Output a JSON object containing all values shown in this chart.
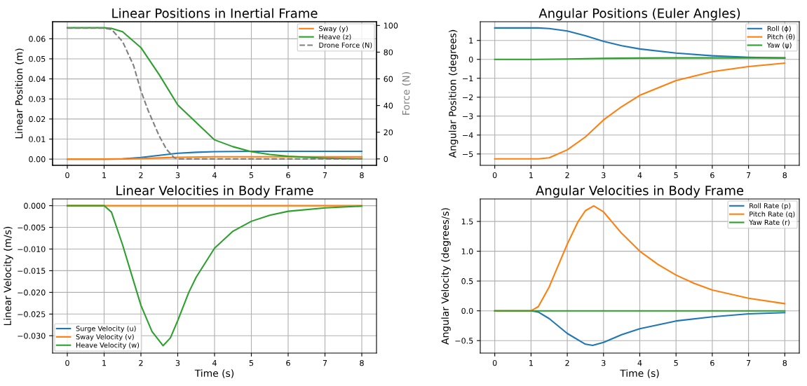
{
  "chart_data": [
    {
      "type": "line",
      "title": "Linear Positions in Inertial Frame",
      "ylabel": "Linear Position (m)",
      "y2label": "Force (N)",
      "grid": true,
      "legend": "top right",
      "xlim": [
        -0.4,
        8.4
      ],
      "xticks": [
        0,
        1,
        2,
        3,
        4,
        5,
        6,
        7,
        8
      ],
      "ylim": [
        -0.0031,
        0.0685
      ],
      "yticks": [
        {
          "value": 0,
          "label": "0.00"
        },
        {
          "value": 0.01,
          "label": "0.01"
        },
        {
          "value": 0.02,
          "label": "0.02"
        },
        {
          "value": 0.03,
          "label": "0.03"
        },
        {
          "value": 0.04,
          "label": "0.04"
        },
        {
          "value": 0.05,
          "label": "0.05"
        },
        {
          "value": 0.06,
          "label": "0.06"
        }
      ],
      "y2lim": [
        -4.8,
        102.8
      ],
      "y2ticks": [
        0,
        20,
        40,
        60,
        80,
        100
      ],
      "series": [
        {
          "color": "#1f77b4",
          "x": [
            0,
            1,
            1.5,
            2,
            2.5,
            3,
            3.5,
            4,
            5,
            8
          ],
          "values": [
            0,
            0,
            0.0001,
            0.0008,
            0.0019,
            0.0029,
            0.0034,
            0.0037,
            0.0039,
            0.0039
          ]
        },
        {
          "name": "Sway (y)",
          "color": "#ff7f0e",
          "x": [
            0,
            1,
            1.5,
            2,
            2.5,
            3,
            4,
            5,
            8
          ],
          "values": [
            0,
            0,
            0.0001,
            0.0003,
            0.0006,
            0.0009,
            0.0012,
            0.0012,
            0.0012
          ]
        },
        {
          "name": "Heave (z)",
          "color": "#2ca02c",
          "x": [
            0,
            1,
            1.2,
            1.5,
            2,
            2.5,
            3,
            3.5,
            4,
            4.5,
            5,
            5.5,
            6,
            6.5,
            7,
            7.5,
            8
          ],
          "values": [
            0.0655,
            0.0655,
            0.0652,
            0.0635,
            0.0556,
            0.042,
            0.027,
            0.0183,
            0.0096,
            0.0062,
            0.0037,
            0.0023,
            0.0014,
            0.0009,
            0.0005,
            0.0003,
            0.0002
          ]
        },
        {
          "name": "Drone Force (N)",
          "color": "#808080",
          "axis": "y2",
          "line_style": "dashed",
          "x": [
            0,
            1,
            1.2,
            1.5,
            1.8,
            2,
            2.2,
            2.5,
            2.7,
            2.9,
            3,
            8
          ],
          "values": [
            98,
            98,
            97,
            88,
            70,
            51,
            36,
            17,
            7,
            1,
            0,
            0
          ]
        }
      ]
    },
    {
      "type": "line",
      "title": "Angular Positions (Euler Angles)",
      "ylabel": "Angular Position (degrees)",
      "grid": true,
      "legend": "top right",
      "xlim": [
        -0.4,
        8.4
      ],
      "xticks": [
        0,
        1,
        2,
        3,
        4,
        5,
        6,
        7,
        8
      ],
      "ylim": [
        -5.6,
        1.99
      ],
      "yticks": [
        {
          "value": -5,
          "label": "−5"
        },
        {
          "value": -4,
          "label": "−4"
        },
        {
          "value": -3,
          "label": "−3"
        },
        {
          "value": -2,
          "label": "−2"
        },
        {
          "value": -1,
          "label": "−1"
        },
        0,
        1
      ],
      "series": [
        {
          "name": "Roll (ϕ)",
          "color": "#1f77b4",
          "x": [
            0,
            1,
            1.2,
            1.5,
            2,
            2.5,
            3,
            3.5,
            4,
            5,
            6,
            7,
            8
          ],
          "values": [
            1.66,
            1.66,
            1.66,
            1.63,
            1.5,
            1.25,
            0.95,
            0.72,
            0.55,
            0.33,
            0.19,
            0.11,
            0.07
          ]
        },
        {
          "name": "Pitch (θ)",
          "color": "#ff7f0e",
          "x": [
            0,
            1,
            1.2,
            1.5,
            2,
            2.5,
            3,
            3.5,
            4,
            5,
            6,
            7,
            8
          ],
          "values": [
            -5.26,
            -5.26,
            -5.26,
            -5.2,
            -4.78,
            -4.1,
            -3.2,
            -2.5,
            -1.9,
            -1.12,
            -0.65,
            -0.38,
            -0.2
          ]
        },
        {
          "name": "Yaw (ψ)",
          "color": "#2ca02c",
          "x": [
            0,
            1,
            2,
            3,
            4,
            5,
            8
          ],
          "values": [
            0,
            0,
            0.02,
            0.05,
            0.07,
            0.08,
            0.08
          ]
        }
      ]
    },
    {
      "type": "line",
      "title": "Linear Velocities in Body Frame",
      "xlabel": "Time (s)",
      "ylabel": "Linear Velocity (m/s)",
      "grid": true,
      "legend": "bottom left",
      "xlim": [
        -0.4,
        8.4
      ],
      "xticks": [
        0,
        1,
        2,
        3,
        4,
        5,
        6,
        7,
        8
      ],
      "ylim": [
        -0.034,
        0.00155
      ],
      "yticks": [
        {
          "value": -0.03,
          "label": "−0.030"
        },
        {
          "value": -0.025,
          "label": "−0.025"
        },
        {
          "value": -0.02,
          "label": "−0.020"
        },
        {
          "value": -0.015,
          "label": "−0.015"
        },
        {
          "value": -0.01,
          "label": "−0.010"
        },
        {
          "value": -0.005,
          "label": "−0.005"
        },
        {
          "value": 0,
          "label": "0.000"
        }
      ],
      "series": [
        {
          "name": "Surge Velocity (u)",
          "color": "#1f77b4"
        },
        {
          "name": "Sway Velocity (v)",
          "color": "#ff7f0e",
          "x": [
            0,
            8
          ],
          "values": [
            0,
            0
          ]
        },
        {
          "name": "Heave Velocity (w)",
          "color": "#2ca02c",
          "x": [
            0,
            1,
            1.2,
            1.5,
            1.75,
            2,
            2.3,
            2.6,
            2.8,
            3,
            3.3,
            3.5,
            4,
            4.5,
            5,
            5.5,
            6,
            7,
            8
          ],
          "values": [
            0,
            0,
            -0.0015,
            -0.009,
            -0.016,
            -0.023,
            -0.029,
            -0.0323,
            -0.0305,
            -0.0265,
            -0.02,
            -0.0165,
            -0.0098,
            -0.0059,
            -0.0036,
            -0.0022,
            -0.0013,
            -0.0005,
            -0.0001
          ]
        }
      ]
    },
    {
      "type": "line",
      "title": "Angular Velocities in Body Frame",
      "xlabel": "Time (s)",
      "ylabel": "Angular Velocity (degrees/s)",
      "grid": true,
      "legend": "top right",
      "xlim": [
        -0.4,
        8.4
      ],
      "xticks": [
        0,
        1,
        2,
        3,
        4,
        5,
        6,
        7,
        8
      ],
      "ylim": [
        -0.709,
        1.877
      ],
      "yticks": [
        {
          "value": -0.5,
          "label": "−0.5"
        },
        {
          "value": 0,
          "label": "0.0"
        },
        {
          "value": 0.5,
          "label": "0.5"
        },
        {
          "value": 1,
          "label": "1.0"
        },
        {
          "value": 1.5,
          "label": "1.5"
        }
      ],
      "series": [
        {
          "name": "Roll Rate (p)",
          "color": "#1f77b4",
          "x": [
            0,
            1,
            1.2,
            1.5,
            2,
            2.5,
            2.7,
            3,
            3.5,
            4,
            5,
            6,
            7,
            8
          ],
          "values": [
            0,
            0,
            -0.02,
            -0.13,
            -0.38,
            -0.56,
            -0.58,
            -0.53,
            -0.4,
            -0.3,
            -0.17,
            -0.1,
            -0.05,
            -0.03
          ]
        },
        {
          "name": "Pitch Rate (q)",
          "color": "#ff7f0e",
          "x": [
            0,
            1,
            1.2,
            1.5,
            2,
            2.3,
            2.5,
            2.73,
            3,
            3.5,
            4,
            4.5,
            5,
            5.5,
            6,
            7,
            8
          ],
          "values": [
            0,
            0,
            0.07,
            0.4,
            1.12,
            1.5,
            1.68,
            1.76,
            1.66,
            1.3,
            1.0,
            0.78,
            0.6,
            0.46,
            0.35,
            0.21,
            0.12
          ]
        },
        {
          "name": "Yaw Rate (r)",
          "color": "#2ca02c",
          "x": [
            0,
            8
          ],
          "values": [
            0,
            0
          ]
        }
      ]
    }
  ]
}
